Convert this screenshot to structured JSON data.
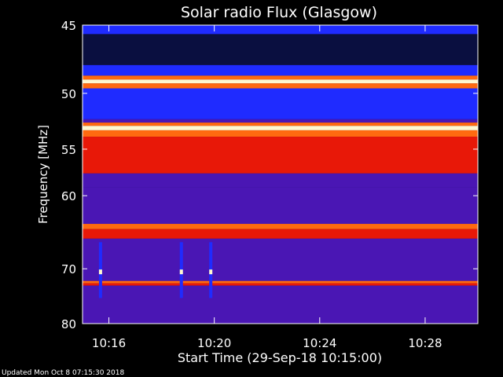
{
  "chart_data": {
    "type": "heatmap",
    "title": "Solar radio Flux (Glasgow)",
    "xlabel": "Start Time (29-Sep-18 10:15:00)",
    "ylabel": "Frequency [MHz]",
    "x_range": [
      "10:15:00",
      "10:30:00"
    ],
    "y_range_mhz": [
      45,
      80
    ],
    "x_ticks": [
      "10:16",
      "10:20",
      "10:24",
      "10:28"
    ],
    "y_ticks": [
      45,
      50,
      55,
      60,
      70,
      80
    ],
    "y_scale": "reciprocal",
    "colors": {
      "background": "#000000",
      "low": "#0a0f40",
      "blue": "#1f2bff",
      "purple": "#4a16b4",
      "red": "#e81808",
      "orange": "#ff6a10",
      "white": "#fff8d0"
    },
    "bands": [
      {
        "f1": 45.0,
        "f2": 45.6,
        "level": "blue"
      },
      {
        "f1": 45.6,
        "f2": 47.8,
        "level": "low"
      },
      {
        "f1": 47.8,
        "f2": 48.6,
        "level": "blue"
      },
      {
        "f1": 48.6,
        "f2": 48.9,
        "level": "orange"
      },
      {
        "f1": 48.9,
        "f2": 49.2,
        "level": "white"
      },
      {
        "f1": 49.2,
        "f2": 49.6,
        "level": "orange"
      },
      {
        "f1": 49.6,
        "f2": 52.2,
        "level": "blue"
      },
      {
        "f1": 52.2,
        "f2": 52.5,
        "level": "purple"
      },
      {
        "f1": 52.5,
        "f2": 52.8,
        "level": "orange"
      },
      {
        "f1": 52.8,
        "f2": 53.2,
        "level": "white"
      },
      {
        "f1": 53.2,
        "f2": 53.8,
        "level": "orange"
      },
      {
        "f1": 53.8,
        "f2": 57.5,
        "level": "red"
      },
      {
        "f1": 57.5,
        "f2": 59.0,
        "level": "purple"
      },
      {
        "f1": 59.0,
        "f2": 63.5,
        "level": "purple"
      },
      {
        "f1": 63.5,
        "f2": 64.2,
        "level": "orange"
      },
      {
        "f1": 64.2,
        "f2": 65.5,
        "level": "red"
      },
      {
        "f1": 65.5,
        "f2": 72.0,
        "level": "purple"
      },
      {
        "f1": 72.0,
        "f2": 72.4,
        "level": "orange"
      },
      {
        "f1": 72.4,
        "f2": 72.8,
        "level": "red"
      },
      {
        "f1": 72.8,
        "f2": 80.0,
        "level": "purple"
      }
    ],
    "bursts": [
      {
        "time": "10:15:41",
        "f1": 66.0,
        "f2": 75.0
      },
      {
        "time": "10:18:45",
        "f1": 66.0,
        "f2": 75.0
      },
      {
        "time": "10:19:52",
        "f1": 66.0,
        "f2": 75.0
      }
    ]
  },
  "footer": "Updated Mon Oct  8 07:15:30 2018"
}
